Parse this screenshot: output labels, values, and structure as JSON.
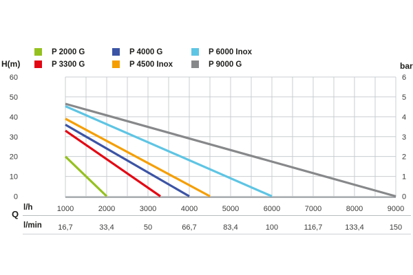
{
  "labels": {
    "y_left_unit": "H(m)",
    "y_right_unit": "bar",
    "flow_symbol": "Q",
    "flow_row1_unit": "l/h",
    "flow_row2_unit": "l/min"
  },
  "chart_data": {
    "type": "line",
    "title": "",
    "legend_position": "top",
    "grid": true,
    "x_axis": {
      "unit_row1": "l/h",
      "unit_row2": "l/min",
      "range_lh": [
        1000,
        9000
      ],
      "minor_grid_step_lh": 500,
      "ticks_lh": [
        "1000",
        "2000",
        "3000",
        "4000",
        "5000",
        "6000",
        "7000",
        "8000",
        "9000"
      ],
      "ticks_lh_values": [
        1000,
        2000,
        3000,
        4000,
        5000,
        6000,
        7000,
        8000,
        9000
      ],
      "ticks_lmin": [
        "16,7",
        "33,4",
        "50",
        "66,7",
        "83,4",
        "100",
        "116,7",
        "133,4",
        "150"
      ]
    },
    "y_axis_left": {
      "unit": "H(m)",
      "range": [
        0,
        60
      ],
      "ticks": [
        "60",
        "50",
        "40",
        "30",
        "20",
        "10",
        "0"
      ],
      "tick_values": [
        60,
        50,
        40,
        30,
        20,
        10,
        0
      ]
    },
    "y_axis_right": {
      "unit": "bar",
      "range": [
        0,
        6
      ],
      "ticks": [
        "6",
        "5",
        "4",
        "3",
        "2",
        "1",
        "0"
      ],
      "tick_values": [
        6,
        5,
        4,
        3,
        2,
        1,
        0
      ]
    },
    "series": [
      {
        "name": "P 2000 G",
        "color": "#95C11F",
        "points_lh_m": [
          [
            1000,
            20.0
          ],
          [
            2000,
            0
          ]
        ]
      },
      {
        "name": "P 3300 G",
        "color": "#E30613",
        "points_lh_m": [
          [
            1000,
            33.0
          ],
          [
            3300,
            0
          ]
        ]
      },
      {
        "name": "P 4000 G",
        "color": "#3B54A5",
        "points_lh_m": [
          [
            1000,
            36.0
          ],
          [
            4000,
            0
          ]
        ]
      },
      {
        "name": "P 4500 Inox",
        "color": "#F59E00",
        "points_lh_m": [
          [
            1000,
            39.0
          ],
          [
            4500,
            0
          ]
        ]
      },
      {
        "name": "P 6000 Inox",
        "color": "#5EC5E4",
        "points_lh_m": [
          [
            1000,
            45.3
          ],
          [
            6000,
            0
          ]
        ]
      },
      {
        "name": "P 9000 G",
        "color": "#87888A",
        "points_lh_m": [
          [
            1000,
            46.5
          ],
          [
            9000,
            0
          ]
        ]
      }
    ],
    "grid_color": "#c9cdd0",
    "baseline_color": "#8e9295",
    "rule1_color": "#b9bdbf",
    "rule2_color": "#ced1d3"
  }
}
